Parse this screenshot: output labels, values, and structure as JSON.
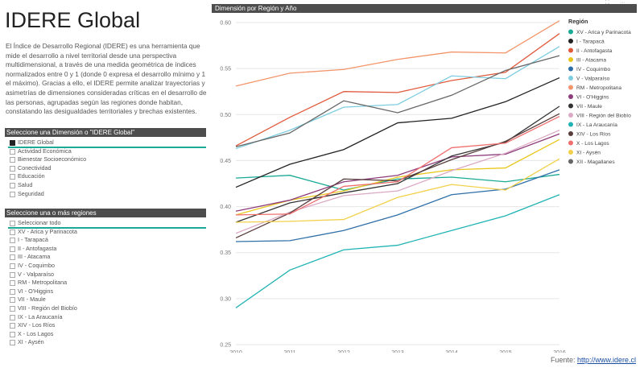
{
  "page": {
    "title": "IDERE Global",
    "intro": "El Índice de Desarrollo Regional (IDERE) es una herramienta que mide el desarrollo a nivel territorial desde una perspectiva multidimensional, a través de una medida geométrica de índices normalizados entre 0 y 1 (donde 0 expresa el desarrollo mínimo y 1 el máximo). Gracias a ello, el IDERE permite analizar trayectorias y asimetrías de dimensiones consideradas críticas en el desarrollo de las personas, agrupadas según las regiones donde habitan, constatando las desigualdades territoriales y brechas existentes.",
    "footer_label": "Fuente: ",
    "footer_link": "http://www.idere.cl"
  },
  "dimension_slicer": {
    "header": "Seleccione una Dimensión o \"IDERE Global\"",
    "items": [
      {
        "label": "IDERE Global",
        "checked": true
      },
      {
        "label": "Actividad Económica",
        "checked": false
      },
      {
        "label": "Bienestar Socioeconómico",
        "checked": false
      },
      {
        "label": "Conectividad",
        "checked": false
      },
      {
        "label": "Educación",
        "checked": false
      },
      {
        "label": "Salud",
        "checked": false
      },
      {
        "label": "Seguridad",
        "checked": false
      }
    ]
  },
  "region_slicer": {
    "header": "Seleccione una  o  más regiones",
    "items": [
      {
        "label": "Seleccionar todo",
        "checked": false
      },
      {
        "label": "XV - Arica y Parinacota",
        "checked": false
      },
      {
        "label": "I - Tarapacá",
        "checked": false
      },
      {
        "label": "II - Antofagasta",
        "checked": false
      },
      {
        "label": "III - Atacama",
        "checked": false
      },
      {
        "label": "IV - Coquimbo",
        "checked": false
      },
      {
        "label": "V - Valparaíso",
        "checked": false
      },
      {
        "label": "RM - Metropolitana",
        "checked": false
      },
      {
        "label": "VI - O'Higgins",
        "checked": false
      },
      {
        "label": "VII - Maule",
        "checked": false
      },
      {
        "label": "VIII - Región del Biobío",
        "checked": false
      },
      {
        "label": "IX - La Araucanía",
        "checked": false
      },
      {
        "label": "XIV - Los Ríos",
        "checked": false
      },
      {
        "label": "X - Los Lagos",
        "checked": false
      },
      {
        "label": "XI - Aysén",
        "checked": false
      }
    ]
  },
  "chart_data": {
    "type": "line",
    "title": "Dimensión por Región y Año",
    "legend_title": "Región",
    "legend_position": "right",
    "x": [
      2010,
      2011,
      2012,
      2013,
      2014,
      2015,
      2016
    ],
    "ylim": [
      0.25,
      0.6
    ],
    "yticks": [
      0.25,
      0.3,
      0.35,
      0.4,
      0.45,
      0.5,
      0.55,
      0.6
    ],
    "grid": true,
    "series": [
      {
        "name": "XV - Arica y Parinacota",
        "color": "#1aaa96",
        "values": [
          0.431,
          0.434,
          0.418,
          0.43,
          0.432,
          0.427,
          0.435
        ]
      },
      {
        "name": "I - Tarapacá",
        "color": "#222222",
        "values": [
          0.421,
          0.446,
          0.462,
          0.491,
          0.496,
          0.514,
          0.54
        ]
      },
      {
        "name": "II - Antofagasta",
        "color": "#e05a3c",
        "values": [
          0.466,
          0.497,
          0.525,
          0.524,
          0.537,
          0.546,
          0.588
        ]
      },
      {
        "name": "III - Atacama",
        "color": "#e8c71c",
        "values": [
          0.391,
          0.407,
          0.417,
          0.432,
          0.44,
          0.442,
          0.473
        ]
      },
      {
        "name": "IV - Coquimbo",
        "color": "#2e6fa8",
        "values": [
          0.362,
          0.363,
          0.374,
          0.391,
          0.413,
          0.419,
          0.44
        ]
      },
      {
        "name": "V - Valparaíso",
        "color": "#7ccde0",
        "values": [
          0.463,
          0.483,
          0.508,
          0.511,
          0.542,
          0.539,
          0.574
        ]
      },
      {
        "name": "RM - Metropolitana",
        "color": "#f2956a",
        "values": [
          0.531,
          0.545,
          0.549,
          0.56,
          0.568,
          0.567,
          0.602
        ]
      },
      {
        "name": "VI - O'Higgins",
        "color": "#8e3c7c",
        "values": [
          0.395,
          0.407,
          0.427,
          0.434,
          0.454,
          0.457,
          0.479
        ]
      },
      {
        "name": "VII - Maule",
        "color": "#333333",
        "values": [
          0.383,
          0.404,
          0.415,
          0.425,
          0.455,
          0.47,
          0.509
        ]
      },
      {
        "name": "VIII - Región del Biobío",
        "color": "#dba9c4",
        "values": [
          0.371,
          0.394,
          0.412,
          0.417,
          0.439,
          0.458,
          0.483
        ]
      },
      {
        "name": "IX - La Araucanía",
        "color": "#21b3b3",
        "values": [
          0.29,
          0.331,
          0.353,
          0.358,
          0.374,
          0.39,
          0.413
        ]
      },
      {
        "name": "XIV - Los Ríos",
        "color": "#5a3e3e",
        "values": [
          0.366,
          0.393,
          0.43,
          0.428,
          0.451,
          0.471,
          0.501
        ]
      },
      {
        "name": "X - Los Lagos",
        "color": "#ef6f6f",
        "values": [
          0.391,
          0.392,
          0.422,
          0.427,
          0.464,
          0.469,
          0.498
        ]
      },
      {
        "name": "XI - Aysén",
        "color": "#f2d04a",
        "values": [
          0.383,
          0.384,
          0.386,
          0.41,
          0.424,
          0.418,
          0.452
        ]
      },
      {
        "name": "XII - Magallanes",
        "color": "#666666",
        "values": [
          0.465,
          0.48,
          0.515,
          0.502,
          0.521,
          0.548,
          0.564
        ]
      }
    ]
  }
}
